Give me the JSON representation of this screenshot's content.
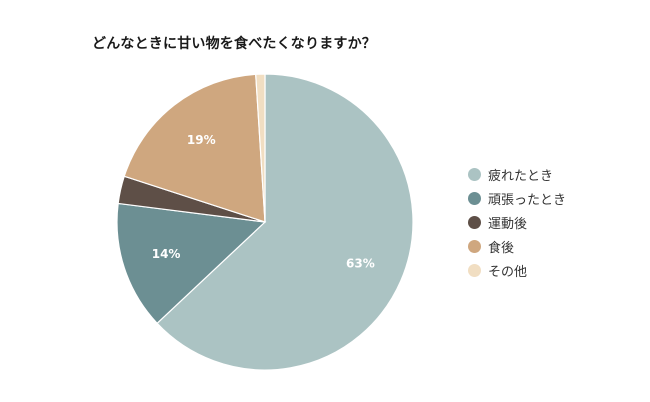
{
  "chart_data": {
    "type": "pie",
    "title": "どんなときに甘い物を食べたくなりますか？",
    "legend_position": "right",
    "categories": [
      "疲れたとき",
      "頑張ったとき",
      "運動後",
      "食後",
      "その他"
    ],
    "values": [
      63,
      14,
      3,
      19,
      1
    ],
    "value_labels": [
      "63%",
      "14%",
      "",
      "19%",
      ""
    ],
    "colors": [
      "#abc3c3",
      "#6c8f93",
      "#5e4f47",
      "#cfa77f",
      "#f1dec2"
    ],
    "start_angle_deg": 0,
    "direction": "clockwise"
  }
}
